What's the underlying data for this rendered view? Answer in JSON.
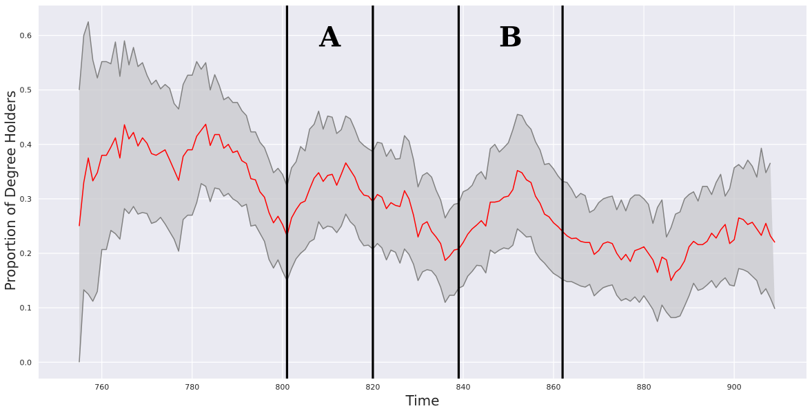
{
  "chart_data": {
    "type": "line",
    "title": "",
    "xlabel": "Time",
    "ylabel": "Proportion of Degree Holders",
    "xlim": [
      746,
      916
    ],
    "ylim": [
      -0.03,
      0.655
    ],
    "xticks": [
      760,
      780,
      800,
      820,
      840,
      860,
      880,
      900
    ],
    "yticks": [
      0.0,
      0.1,
      0.2,
      0.3,
      0.4,
      0.5,
      0.6
    ],
    "grid": true,
    "x_start": 755,
    "x_step": 1,
    "series": [
      {
        "role": "mean",
        "color": "#ff0000",
        "values": [
          0.25,
          0.33,
          0.375,
          0.333,
          0.348,
          0.38,
          0.38,
          0.395,
          0.412,
          0.375,
          0.436,
          0.41,
          0.422,
          0.397,
          0.412,
          0.402,
          0.383,
          0.38,
          0.385,
          0.39,
          0.372,
          0.353,
          0.334,
          0.378,
          0.39,
          0.39,
          0.415,
          0.426,
          0.437,
          0.398,
          0.418,
          0.418,
          0.393,
          0.4,
          0.385,
          0.388,
          0.37,
          0.365,
          0.337,
          0.335,
          0.313,
          0.303,
          0.275,
          0.256,
          0.268,
          0.253,
          0.232,
          0.265,
          0.28,
          0.292,
          0.296,
          0.318,
          0.338,
          0.348,
          0.332,
          0.343,
          0.345,
          0.325,
          0.345,
          0.366,
          0.353,
          0.34,
          0.318,
          0.307,
          0.305,
          0.295,
          0.308,
          0.303,
          0.282,
          0.293,
          0.288,
          0.286,
          0.315,
          0.3,
          0.27,
          0.23,
          0.253,
          0.258,
          0.24,
          0.23,
          0.218,
          0.187,
          0.195,
          0.206,
          0.208,
          0.22,
          0.235,
          0.245,
          0.252,
          0.26,
          0.25,
          0.294,
          0.294,
          0.296,
          0.303,
          0.305,
          0.317,
          0.352,
          0.348,
          0.335,
          0.33,
          0.305,
          0.292,
          0.272,
          0.267,
          0.256,
          0.249,
          0.24,
          0.232,
          0.227,
          0.228,
          0.222,
          0.22,
          0.22,
          0.198,
          0.205,
          0.218,
          0.221,
          0.218,
          0.2,
          0.188,
          0.198,
          0.185,
          0.205,
          0.208,
          0.212,
          0.2,
          0.188,
          0.165,
          0.193,
          0.188,
          0.15,
          0.165,
          0.172,
          0.186,
          0.212,
          0.222,
          0.216,
          0.216,
          0.222,
          0.237,
          0.228,
          0.243,
          0.253,
          0.218,
          0.225,
          0.265,
          0.262,
          0.253,
          0.257,
          0.245,
          0.233,
          0.255,
          0.232,
          0.22
        ]
      },
      {
        "role": "upper",
        "color": "#808080",
        "values": [
          0.5,
          0.6,
          0.625,
          0.555,
          0.522,
          0.552,
          0.552,
          0.548,
          0.588,
          0.525,
          0.59,
          0.546,
          0.578,
          0.543,
          0.55,
          0.527,
          0.51,
          0.518,
          0.502,
          0.51,
          0.503,
          0.475,
          0.465,
          0.51,
          0.527,
          0.527,
          0.552,
          0.538,
          0.55,
          0.5,
          0.528,
          0.508,
          0.482,
          0.487,
          0.477,
          0.477,
          0.462,
          0.453,
          0.423,
          0.423,
          0.404,
          0.394,
          0.372,
          0.348,
          0.356,
          0.345,
          0.323,
          0.357,
          0.368,
          0.396,
          0.388,
          0.428,
          0.437,
          0.461,
          0.428,
          0.452,
          0.45,
          0.42,
          0.427,
          0.452,
          0.447,
          0.428,
          0.406,
          0.398,
          0.392,
          0.387,
          0.404,
          0.402,
          0.378,
          0.391,
          0.373,
          0.374,
          0.416,
          0.406,
          0.372,
          0.322,
          0.343,
          0.348,
          0.34,
          0.316,
          0.298,
          0.265,
          0.28,
          0.29,
          0.292,
          0.313,
          0.317,
          0.325,
          0.343,
          0.35,
          0.336,
          0.392,
          0.4,
          0.386,
          0.394,
          0.403,
          0.427,
          0.455,
          0.453,
          0.437,
          0.428,
          0.405,
          0.39,
          0.363,
          0.365,
          0.355,
          0.342,
          0.332,
          0.33,
          0.318,
          0.302,
          0.31,
          0.306,
          0.275,
          0.28,
          0.293,
          0.3,
          0.303,
          0.305,
          0.28,
          0.298,
          0.278,
          0.3,
          0.307,
          0.307,
          0.3,
          0.29,
          0.255,
          0.284,
          0.298,
          0.23,
          0.247,
          0.272,
          0.276,
          0.3,
          0.308,
          0.313,
          0.296,
          0.323,
          0.323,
          0.308,
          0.33,
          0.345,
          0.305,
          0.319,
          0.357,
          0.363,
          0.355,
          0.371,
          0.36,
          0.34,
          0.393,
          0.348,
          0.366
        ]
      },
      {
        "role": "lower",
        "color": "#808080",
        "values": [
          0.0,
          0.133,
          0.125,
          0.112,
          0.13,
          0.207,
          0.207,
          0.242,
          0.236,
          0.226,
          0.282,
          0.273,
          0.286,
          0.272,
          0.275,
          0.273,
          0.255,
          0.258,
          0.266,
          0.254,
          0.24,
          0.226,
          0.204,
          0.262,
          0.27,
          0.27,
          0.293,
          0.328,
          0.323,
          0.295,
          0.32,
          0.318,
          0.305,
          0.31,
          0.3,
          0.295,
          0.286,
          0.29,
          0.25,
          0.252,
          0.237,
          0.222,
          0.189,
          0.173,
          0.188,
          0.167,
          0.15,
          0.172,
          0.19,
          0.2,
          0.207,
          0.221,
          0.226,
          0.258,
          0.245,
          0.25,
          0.248,
          0.238,
          0.25,
          0.272,
          0.258,
          0.25,
          0.226,
          0.214,
          0.215,
          0.208,
          0.218,
          0.21,
          0.188,
          0.206,
          0.202,
          0.182,
          0.208,
          0.198,
          0.18,
          0.15,
          0.166,
          0.17,
          0.168,
          0.158,
          0.138,
          0.11,
          0.123,
          0.123,
          0.136,
          0.14,
          0.158,
          0.167,
          0.178,
          0.177,
          0.164,
          0.206,
          0.2,
          0.206,
          0.21,
          0.208,
          0.215,
          0.245,
          0.238,
          0.23,
          0.231,
          0.202,
          0.19,
          0.182,
          0.172,
          0.163,
          0.158,
          0.152,
          0.148,
          0.148,
          0.144,
          0.14,
          0.138,
          0.143,
          0.122,
          0.13,
          0.137,
          0.14,
          0.142,
          0.123,
          0.113,
          0.117,
          0.112,
          0.12,
          0.11,
          0.122,
          0.11,
          0.097,
          0.075,
          0.105,
          0.092,
          0.082,
          0.082,
          0.085,
          0.103,
          0.122,
          0.145,
          0.132,
          0.135,
          0.142,
          0.15,
          0.137,
          0.148,
          0.155,
          0.142,
          0.14,
          0.172,
          0.17,
          0.166,
          0.158,
          0.15,
          0.125,
          0.135,
          0.118,
          0.098
        ]
      }
    ],
    "vlines": [
      801,
      820,
      839,
      862
    ],
    "annotations": [
      {
        "label": "A",
        "x": 810.5,
        "y": 0.58
      },
      {
        "label": "B",
        "x": 850.5,
        "y": 0.58
      }
    ],
    "colors": {
      "plot_bg": "#eaeaf2",
      "grid": "#ffffff",
      "band_fill": "#c8c8cc",
      "band_edge": "#808080",
      "mean_line": "#ff0000",
      "vline": "#000000"
    }
  }
}
